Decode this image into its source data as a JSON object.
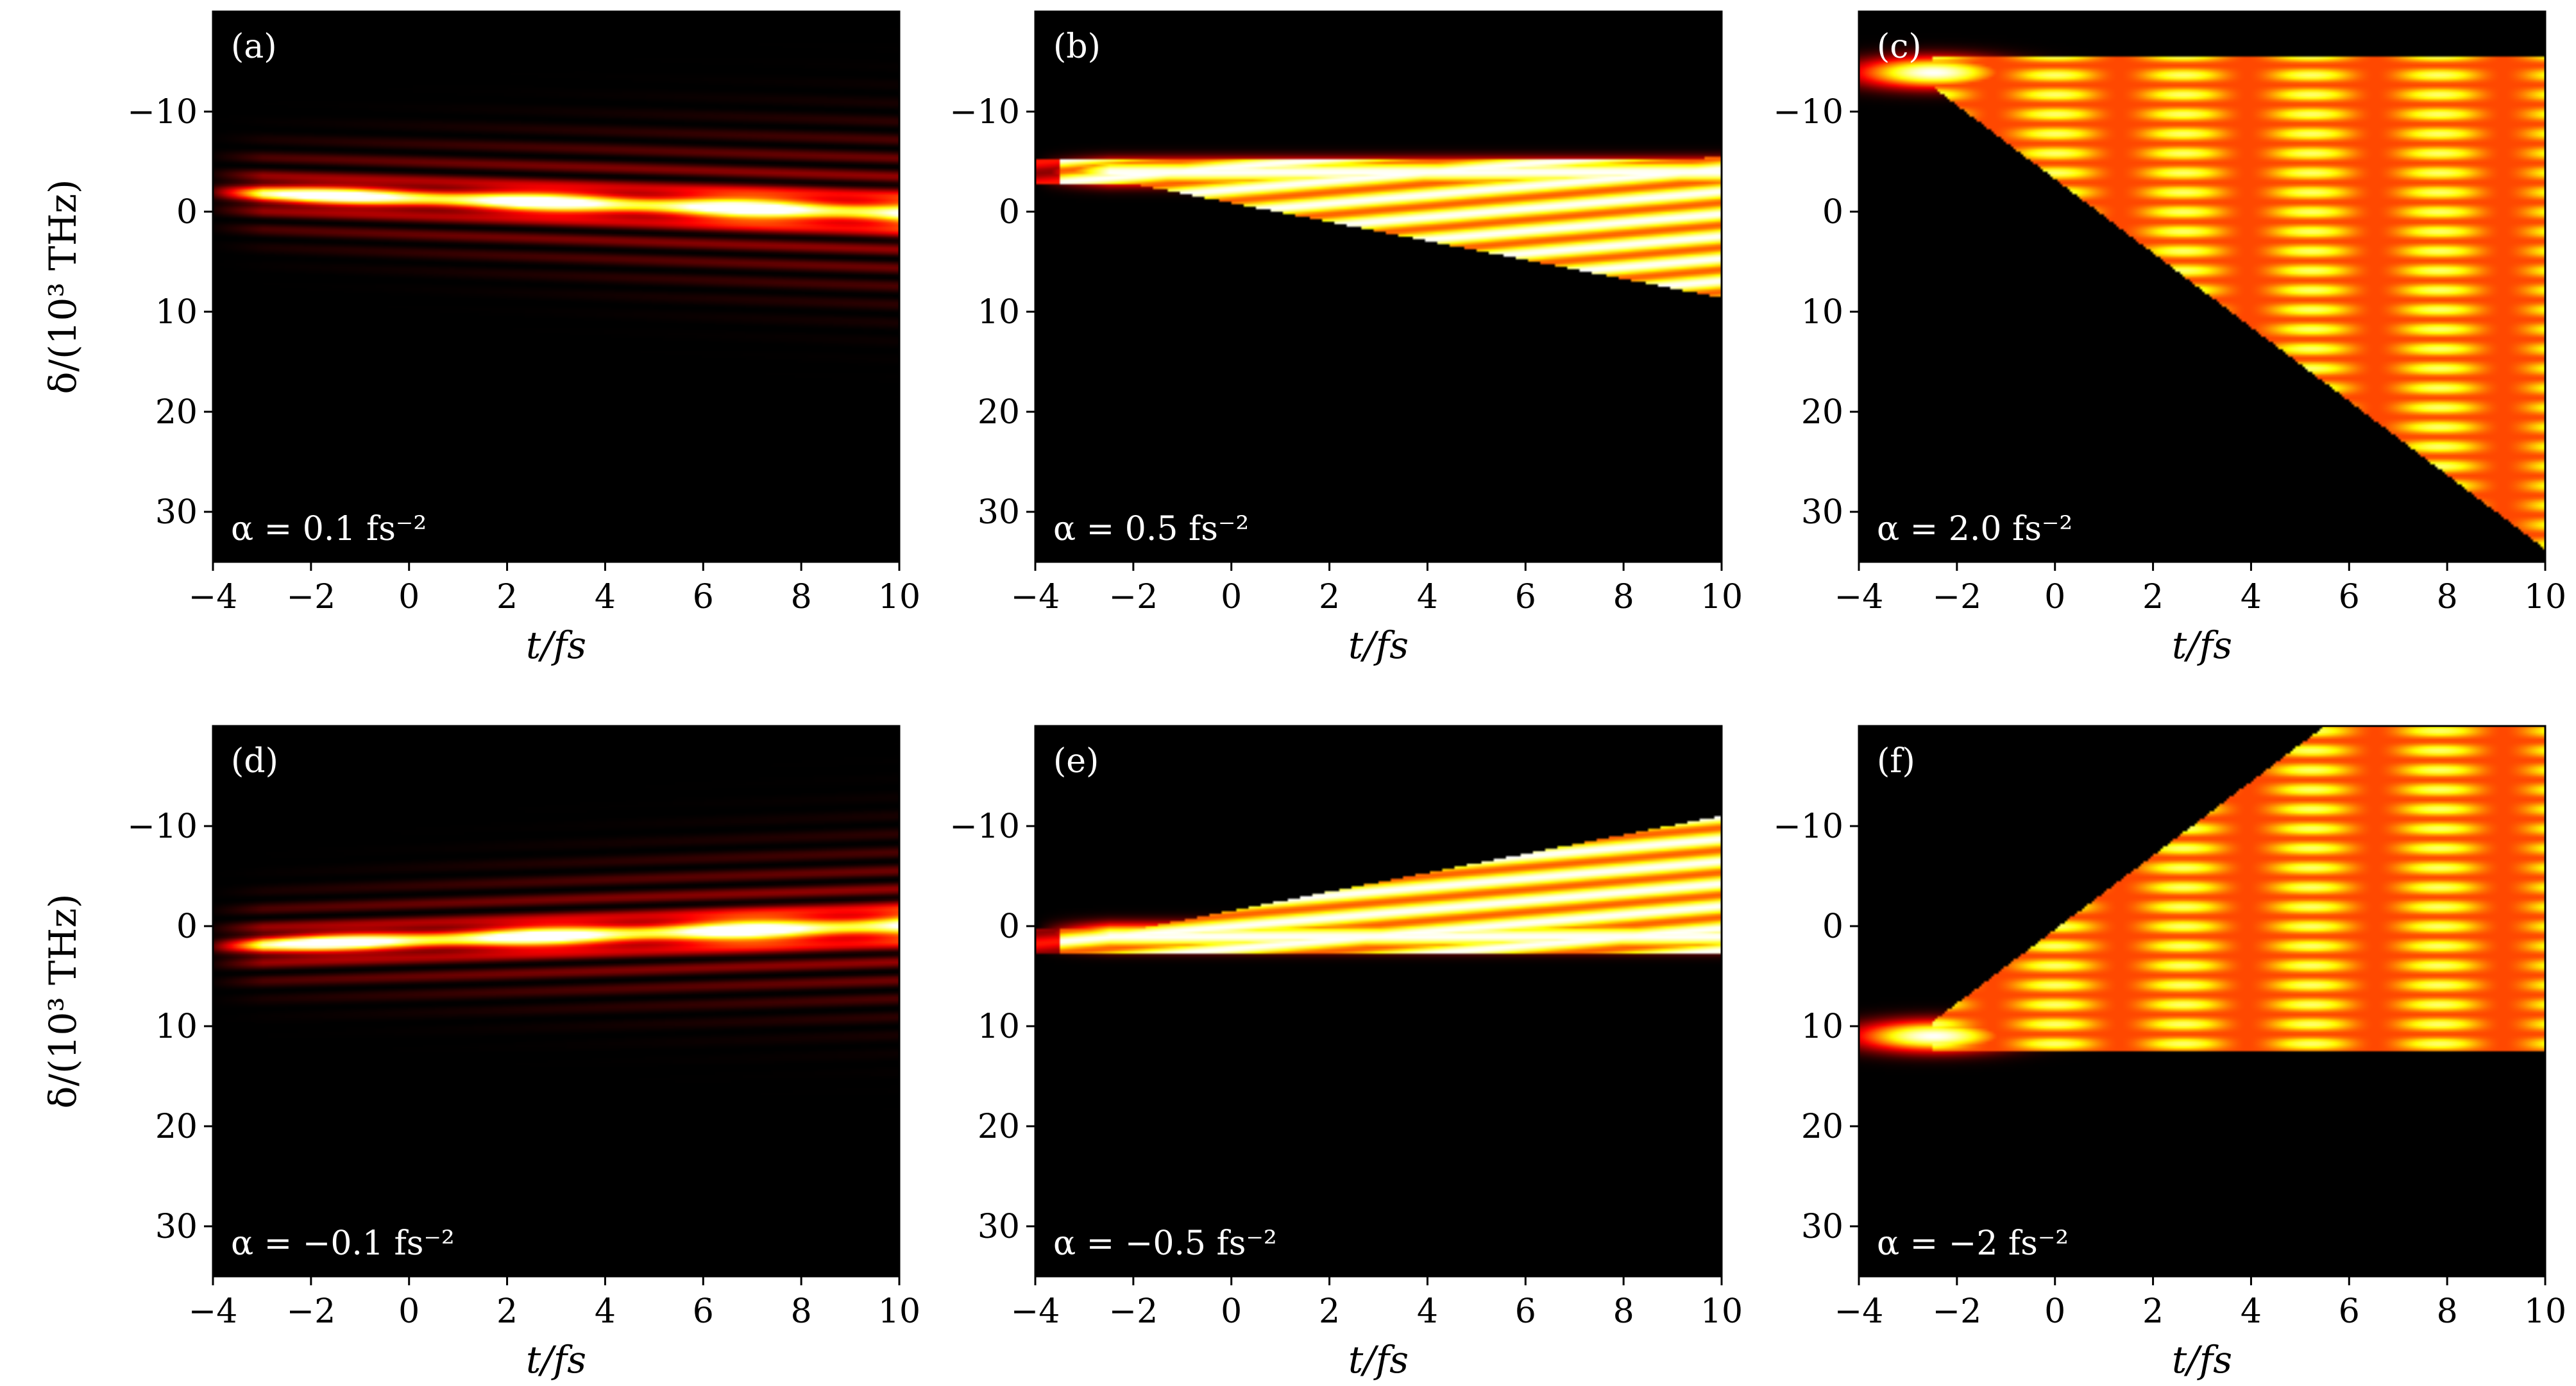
{
  "chart_data": [
    {
      "type": "heatmap",
      "panel_label": "(a)",
      "annotation": "α = 0.1 fs⁻²",
      "alpha": 0.1,
      "xlabel": "t/fs",
      "ylabel": "δ/(10³ THz)",
      "xlim": [
        -4,
        10
      ],
      "ylim": [
        35,
        -20
      ],
      "xticks": [
        "−4",
        "−2",
        "0",
        "2",
        "4",
        "6",
        "8",
        "10"
      ],
      "yticks": [
        "−10",
        "0",
        "10",
        "20",
        "30"
      ],
      "colormap": "hot",
      "grid": false
    },
    {
      "type": "heatmap",
      "panel_label": "(b)",
      "annotation": "α = 0.5 fs⁻²",
      "alpha": 0.5,
      "xlabel": "t/fs",
      "ylabel": "",
      "xlim": [
        -4,
        10
      ],
      "ylim": [
        35,
        -20
      ],
      "xticks": [
        "−4",
        "−2",
        "0",
        "2",
        "4",
        "6",
        "8",
        "10"
      ],
      "yticks": [
        "−10",
        "0",
        "10",
        "20",
        "30"
      ],
      "colormap": "hot",
      "grid": false
    },
    {
      "type": "heatmap",
      "panel_label": "(c)",
      "annotation": "α = 2.0 fs⁻²",
      "alpha": 2.0,
      "xlabel": "t/fs",
      "ylabel": "",
      "xlim": [
        -4,
        10
      ],
      "ylim": [
        35,
        -20
      ],
      "xticks": [
        "−4",
        "−2",
        "0",
        "2",
        "4",
        "6",
        "8",
        "10"
      ],
      "yticks": [
        "−10",
        "0",
        "10",
        "20",
        "30"
      ],
      "colormap": "hot",
      "grid": false
    },
    {
      "type": "heatmap",
      "panel_label": "(d)",
      "annotation": "α = −0.1 fs⁻²",
      "alpha": -0.1,
      "xlabel": "t/fs",
      "ylabel": "δ/(10³ THz)",
      "xlim": [
        -4,
        10
      ],
      "ylim": [
        35,
        -20
      ],
      "xticks": [
        "−4",
        "−2",
        "0",
        "2",
        "4",
        "6",
        "8",
        "10"
      ],
      "yticks": [
        "−10",
        "0",
        "10",
        "20",
        "30"
      ],
      "colormap": "hot",
      "grid": false
    },
    {
      "type": "heatmap",
      "panel_label": "(e)",
      "annotation": "α = −0.5 fs⁻²",
      "alpha": -0.5,
      "xlabel": "t/fs",
      "ylabel": "",
      "xlim": [
        -4,
        10
      ],
      "ylim": [
        35,
        -20
      ],
      "xticks": [
        "−4",
        "−2",
        "0",
        "2",
        "4",
        "6",
        "8",
        "10"
      ],
      "yticks": [
        "−10",
        "0",
        "10",
        "20",
        "30"
      ],
      "colormap": "hot",
      "grid": false
    },
    {
      "type": "heatmap",
      "panel_label": "(f)",
      "annotation": "α = −2 fs⁻²",
      "alpha": -2.0,
      "xlabel": "t/fs",
      "ylabel": "",
      "xlim": [
        -4,
        10
      ],
      "ylim": [
        35,
        -20
      ],
      "xticks": [
        "−4",
        "−2",
        "0",
        "2",
        "4",
        "6",
        "8",
        "10"
      ],
      "yticks": [
        "−10",
        "0",
        "10",
        "20",
        "30"
      ],
      "colormap": "hot",
      "grid": false
    }
  ]
}
